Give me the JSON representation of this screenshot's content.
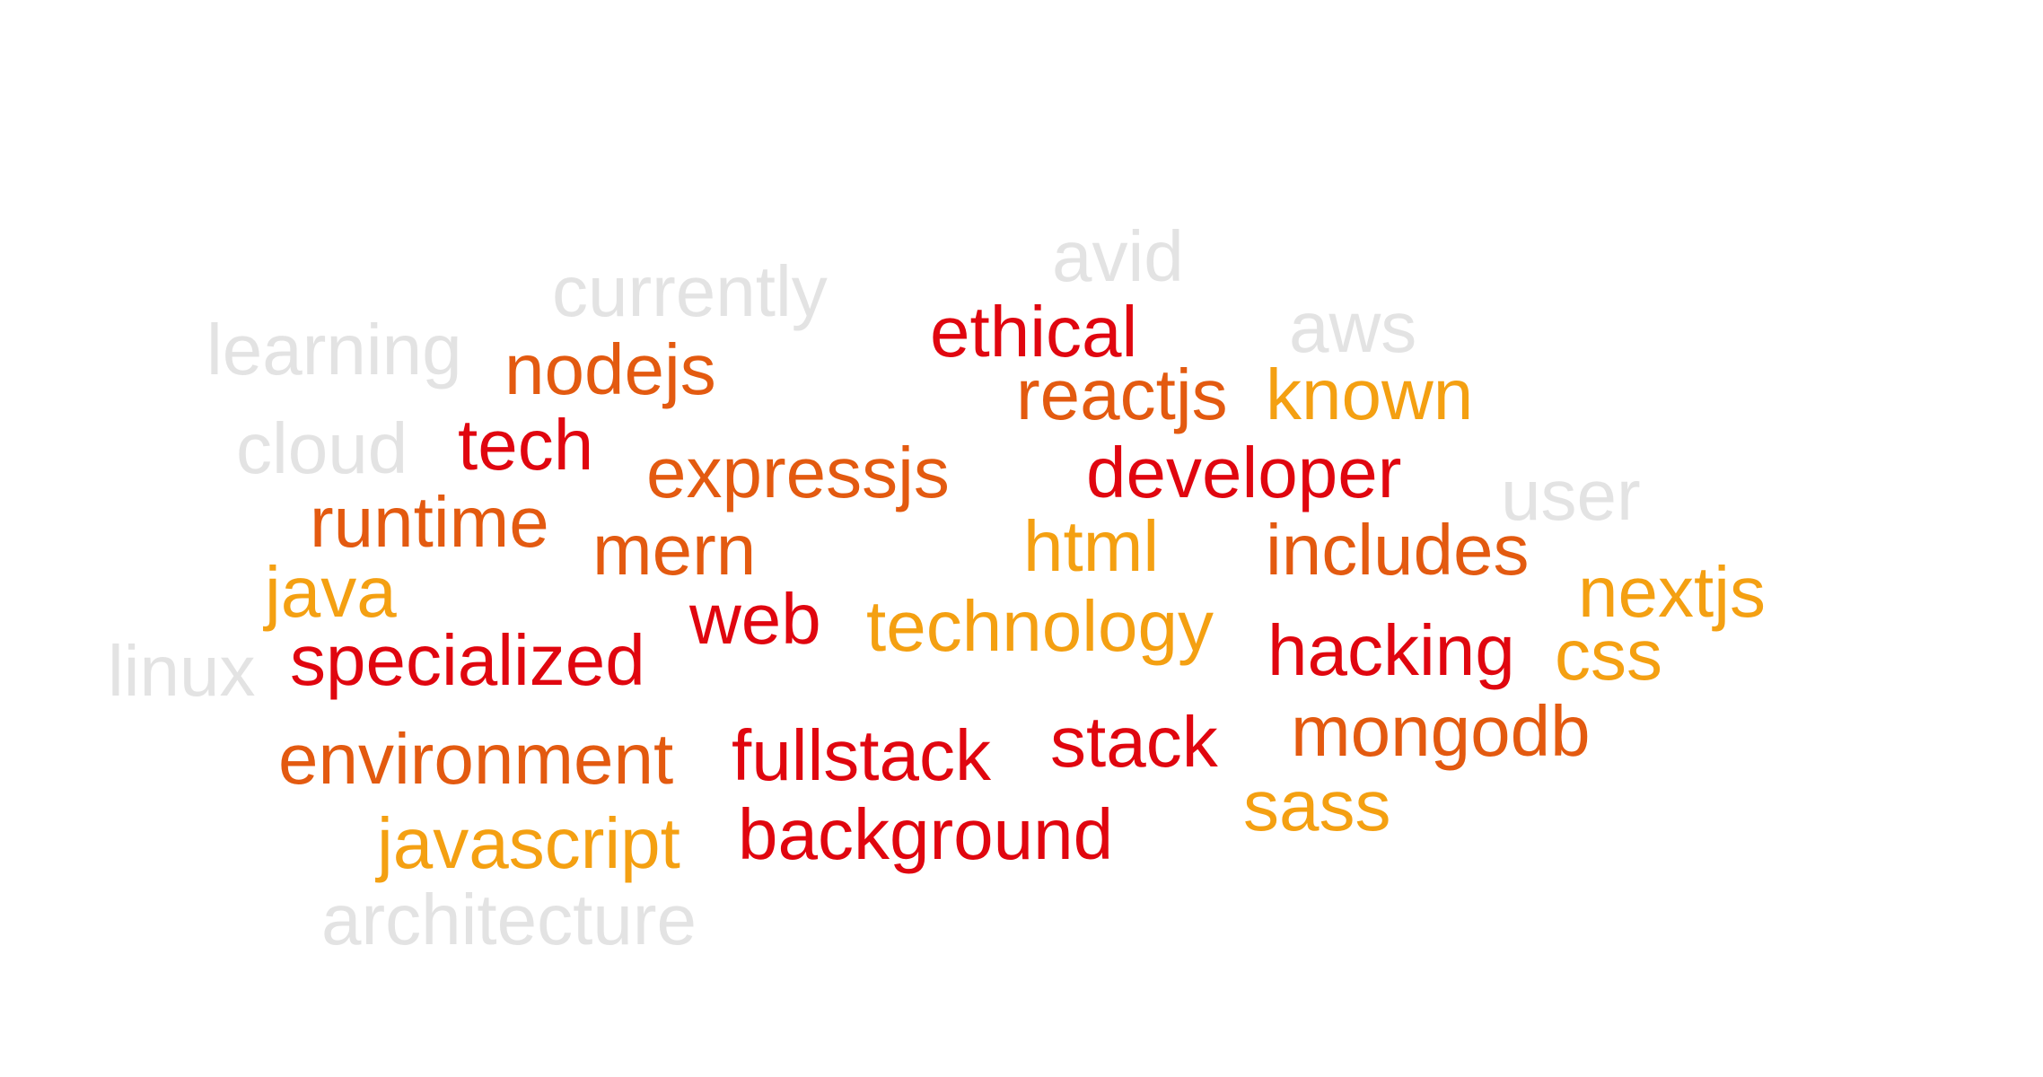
{
  "word_cloud": {
    "palette": {
      "red": "#e0060f",
      "orange": "#e35a10",
      "yellow": "#f4a012",
      "gray": "#e3e3e3"
    },
    "words": {
      "avid": "avid",
      "currently": "currently",
      "ethical": "ethical",
      "aws": "aws",
      "learning": "learning",
      "nodejs": "nodejs",
      "reactjs": "reactjs",
      "known": "known",
      "cloud": "cloud",
      "tech": "tech",
      "expressjs": "expressjs",
      "developer": "developer",
      "user": "user",
      "runtime": "runtime",
      "mern": "mern",
      "html": "html",
      "includes": "includes",
      "java": "java",
      "nextjs": "nextjs",
      "web": "web",
      "technology": "technology",
      "hacking": "hacking",
      "css": "css",
      "linux": "linux",
      "specialized": "specialized",
      "mongodb": "mongodb",
      "stack": "stack",
      "environment": "environment",
      "fullstack": "fullstack",
      "sass": "sass",
      "javascript": "javascript",
      "background": "background",
      "architecture": "architecture"
    }
  }
}
